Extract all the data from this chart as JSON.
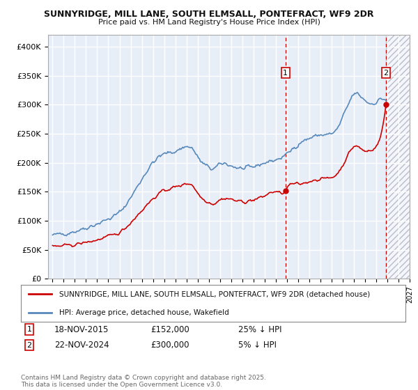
{
  "title1": "SUNNYRIDGE, MILL LANE, SOUTH ELMSALL, PONTEFRACT, WF9 2DR",
  "title2": "Price paid vs. HM Land Registry's House Price Index (HPI)",
  "line_color_red": "#cc0000",
  "line_color_blue": "#5588bb",
  "bg_color": "#e8eef8",
  "grid_color": "#ffffff",
  "sale1_date": "18-NOV-2015",
  "sale1_price": 152000,
  "sale1_hpi": "25% ↓ HPI",
  "sale2_date": "22-NOV-2024",
  "sale2_price": 300000,
  "sale2_hpi": "5% ↓ HPI",
  "sale1_year": 2015.875,
  "sale2_year": 2024.875,
  "legend_red": "SUNNYRIDGE, MILL LANE, SOUTH ELMSALL, PONTEFRACT, WF9 2DR (detached house)",
  "legend_blue": "HPI: Average price, detached house, Wakefield",
  "footnote": "Contains HM Land Registry data © Crown copyright and database right 2025.\nThis data is licensed under the Open Government Licence v3.0.",
  "xlim_left": 1994.6,
  "xlim_right": 2027.0,
  "ylim_top": 420000,
  "yticks": [
    0,
    50000,
    100000,
    150000,
    200000,
    250000,
    300000,
    350000,
    400000
  ],
  "ytick_labels": [
    "£0",
    "£50K",
    "£100K",
    "£150K",
    "£200K",
    "£250K",
    "£300K",
    "£350K",
    "£400K"
  ]
}
